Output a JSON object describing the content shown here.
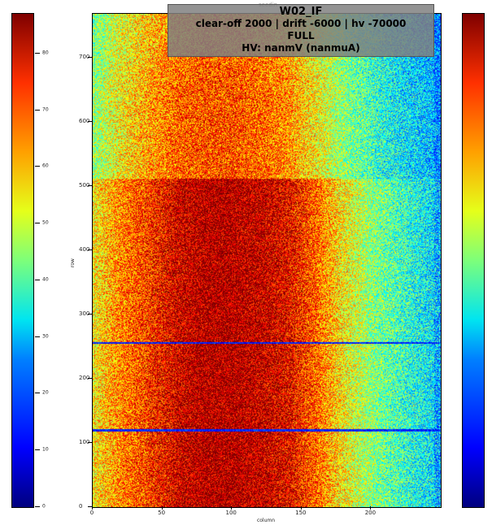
{
  "title": {
    "line1": "W02_IF",
    "line2": "clear-off 2000 | drift -6000 | hv -70000",
    "line3": "FULL",
    "line4": "HV: nanmV (nanmuA)",
    "background_text": "seedin"
  },
  "colorbar": {
    "colormap": "jet",
    "ticks": [
      "0",
      "10",
      "20",
      "30",
      "40",
      "50",
      "60",
      "70",
      "80"
    ],
    "min": 0,
    "max": 87
  },
  "chart_data": {
    "type": "heatmap",
    "title": "W02_IF",
    "xlabel": "column",
    "ylabel": "row",
    "xlim": [
      0,
      250
    ],
    "ylim": [
      0,
      768
    ],
    "x_ticks": [
      "0",
      "50",
      "100",
      "150",
      "200"
    ],
    "y_ticks": [
      "0",
      "100",
      "200",
      "300",
      "400",
      "500",
      "600",
      "700"
    ],
    "zlim": [
      0,
      87
    ],
    "profile_description": "hot center columns ~60-160, cooling toward high columns",
    "column_profile": {
      "x": [
        0,
        20,
        40,
        60,
        80,
        100,
        120,
        140,
        160,
        180,
        200,
        220,
        240,
        250
      ],
      "value_lower_rows": [
        55,
        65,
        72,
        80,
        84,
        84,
        82,
        78,
        68,
        55,
        45,
        38,
        32,
        30
      ],
      "value_upper_rows": [
        45,
        55,
        62,
        68,
        70,
        70,
        68,
        64,
        55,
        45,
        38,
        32,
        28,
        26
      ]
    },
    "dark_rows": [
      120,
      256
    ],
    "upper_region_start_row": 512
  }
}
